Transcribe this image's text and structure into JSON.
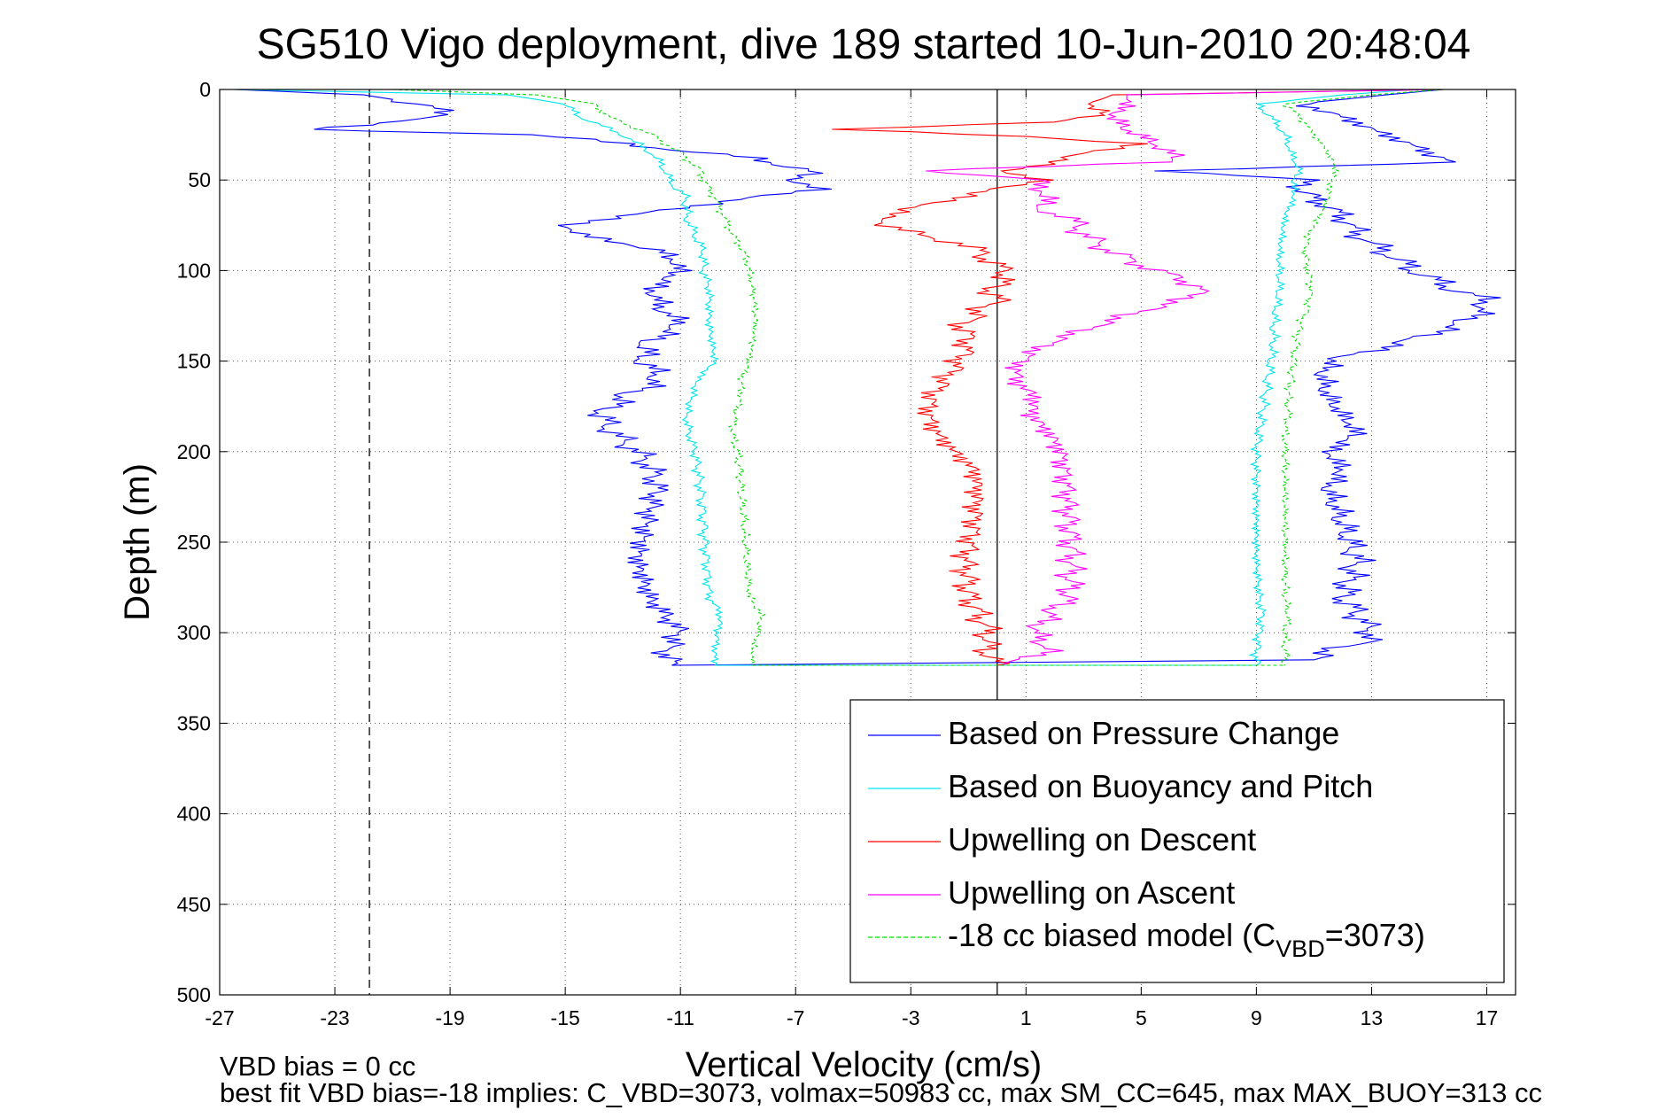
{
  "chart_data": {
    "type": "line",
    "title": "SG510 Vigo deployment, dive 189 started 10-Jun-2010 20:48:04",
    "xlabel": "Vertical Velocity (cm/s)",
    "ylabel": "Depth (m)",
    "xlim": [
      -27,
      18
    ],
    "ylim": [
      0,
      500
    ],
    "y_reversed": true,
    "grid": true,
    "x_ticks": [
      -27,
      -23,
      -19,
      -15,
      -11,
      -7,
      -3,
      1,
      5,
      9,
      13,
      17
    ],
    "x_tick_labels": [
      "-27",
      "-23",
      "-19",
      "-15",
      "-11",
      "-7",
      "-3",
      "1",
      "5",
      "9",
      "13",
      "17"
    ],
    "y_ticks": [
      0,
      50,
      100,
      150,
      200,
      250,
      300,
      350,
      400,
      450,
      500
    ],
    "y_tick_labels": [
      "0",
      "50",
      "100",
      "150",
      "200",
      "250",
      "300",
      "350",
      "400",
      "450",
      "500"
    ],
    "reference_lines": [
      {
        "x": -21.8,
        "style": "dashed",
        "color": "#000000"
      },
      {
        "x": 0,
        "style": "solid",
        "color": "#000000"
      }
    ],
    "legend_position": "bottom-right",
    "series": [
      {
        "name": "Based on Pressure Change",
        "color": "#0000ff",
        "dashed": false,
        "descent": {
          "depth": [
            0,
            3,
            8,
            15,
            22,
            25,
            30,
            38,
            45,
            50,
            55,
            62,
            70,
            75,
            80,
            90,
            100,
            110,
            120,
            130,
            140,
            150,
            160,
            170,
            180,
            190,
            200,
            210,
            220,
            240,
            260,
            280,
            300,
            310,
            318
          ],
          "vel": [
            -26.5,
            -22,
            -20,
            -19,
            -24,
            -16,
            -13,
            -8.5,
            -6.5,
            -7,
            -6.3,
            -9.5,
            -13,
            -15,
            -14.5,
            -11.5,
            -11,
            -12,
            -11.7,
            -11,
            -12.2,
            -12.3,
            -11.7,
            -13,
            -13.8,
            -13.3,
            -12.5,
            -12,
            -11.8,
            -12.2,
            -12.5,
            -12.1,
            -11,
            -11.5,
            -11.3
          ]
        },
        "ascent": {
          "depth": [
            0,
            3,
            8,
            15,
            22,
            28,
            35,
            40,
            45,
            50,
            55,
            62,
            70,
            80,
            90,
            100,
            110,
            115,
            120,
            130,
            140,
            150,
            160,
            170,
            180,
            190,
            200,
            210,
            220,
            240,
            260,
            280,
            300,
            305,
            310,
            315
          ],
          "vel": [
            15.5,
            13.5,
            10.5,
            12,
            13,
            14,
            15,
            15.8,
            6,
            10.8,
            10.5,
            11.2,
            12,
            12.5,
            13.5,
            14.5,
            15.8,
            16.8,
            17,
            16,
            14,
            11.5,
            11.3,
            11.5,
            12,
            12.5,
            11.5,
            12,
            11.5,
            12,
            12.5,
            12,
            13,
            12.8,
            11.5,
            11
          ]
        }
      },
      {
        "name": "Based on Buoyancy and Pitch",
        "color": "#00e5ee",
        "dashed": false,
        "descent": {
          "depth": [
            0,
            3,
            8,
            15,
            25,
            35,
            45,
            50,
            60,
            70,
            80,
            90,
            100,
            110,
            120,
            130,
            140,
            150,
            160,
            170,
            180,
            190,
            200,
            220,
            240,
            260,
            280,
            290,
            300,
            310,
            318
          ],
          "vel": [
            -26.5,
            -17,
            -15,
            -14.5,
            -13,
            -12,
            -11.5,
            -11.4,
            -10.8,
            -10.8,
            -10.5,
            -10.2,
            -10.2,
            -10,
            -10,
            -10,
            -9.9,
            -9.8,
            -10.4,
            -10.6,
            -10.8,
            -10.7,
            -10.5,
            -10.3,
            -10.2,
            -10.1,
            -10,
            -9.6,
            -9.7,
            -9.8,
            -9.8
          ]
        },
        "ascent": {
          "depth": [
            0,
            3,
            8,
            15,
            25,
            35,
            45,
            50,
            60,
            70,
            80,
            90,
            100,
            110,
            120,
            130,
            140,
            150,
            160,
            170,
            180,
            190,
            200,
            220,
            240,
            260,
            280,
            290,
            300,
            310,
            318
          ],
          "vel": [
            14.5,
            12,
            9,
            9.5,
            10,
            10.2,
            10.5,
            10.3,
            10.3,
            10,
            9.9,
            9.8,
            9.8,
            9.8,
            9.7,
            9.6,
            9.6,
            9.5,
            9.4,
            9.3,
            9.2,
            9.1,
            9,
            9,
            9,
            9,
            9.1,
            9.2,
            9.1,
            9,
            9
          ]
        }
      },
      {
        "name": "Upwelling on Descent",
        "color": "#ff0000",
        "dashed": false,
        "descent": {
          "depth": [
            0,
            3,
            8,
            13,
            18,
            22,
            26,
            30,
            35,
            40,
            45,
            50,
            60,
            70,
            75,
            80,
            85,
            90,
            95,
            100,
            105,
            110,
            115,
            120,
            130,
            140,
            150,
            160,
            170,
            180,
            190,
            200,
            210,
            220,
            240,
            260,
            280,
            300,
            310,
            318
          ],
          "vel": [
            15.5,
            4,
            3.2,
            3.8,
            2,
            -5.5,
            1,
            5,
            3,
            2,
            0.3,
            1.5,
            -1.5,
            -4,
            -3.8,
            -2.8,
            -1.3,
            -0.5,
            -0.3,
            0.3,
            0.3,
            -0.3,
            0.1,
            -0.4,
            -1.2,
            -1,
            -1.3,
            -1.8,
            -2.3,
            -2.4,
            -2.1,
            -1.5,
            -0.8,
            -0.7,
            -0.8,
            -1.1,
            -1,
            -0.3,
            -0.4,
            0
          ]
        }
      },
      {
        "name": "Upwelling on Ascent",
        "color": "#ff00ff",
        "dashed": false,
        "ascent": {
          "depth": [
            0,
            3,
            8,
            15,
            22,
            30,
            35,
            40,
            45,
            50,
            55,
            60,
            65,
            70,
            80,
            90,
            100,
            105,
            110,
            115,
            120,
            130,
            140,
            150,
            160,
            170,
            180,
            190,
            200,
            220,
            240,
            260,
            280,
            290,
            300,
            310,
            318
          ],
          "vel": [
            15.5,
            4.5,
            4.5,
            4,
            4.5,
            5.5,
            6,
            6.2,
            -3,
            2,
            1,
            2.2,
            1,
            2.5,
            3,
            4,
            5.5,
            6.5,
            7,
            6.8,
            5.5,
            3.5,
            1.8,
            0.8,
            0.6,
            1.3,
            1.2,
            1.8,
            2.2,
            2.4,
            2.5,
            2.6,
            2.5,
            1.8,
            1.3,
            1.8,
            0.2
          ]
        }
      },
      {
        "name": "-18 cc biased model (C_VBD=3073)",
        "legend_label_parts": [
          "-18 cc biased model (C",
          "VBD",
          "=3073)"
        ],
        "color": "#00dd00",
        "dashed": true,
        "descent": {
          "depth": [
            0,
            3,
            8,
            15,
            25,
            35,
            45,
            50,
            60,
            70,
            80,
            90,
            100,
            110,
            120,
            130,
            140,
            150,
            160,
            170,
            180,
            190,
            200,
            220,
            240,
            260,
            280,
            290,
            300,
            310,
            318
          ],
          "vel": [
            -21,
            -16,
            -14,
            -13.5,
            -12,
            -11,
            -10.3,
            -10.2,
            -9.8,
            -9.5,
            -9.2,
            -8.8,
            -8.6,
            -8.5,
            -8.4,
            -8.4,
            -8.5,
            -8.6,
            -8.9,
            -8.9,
            -9.1,
            -9.2,
            -9,
            -8.9,
            -8.8,
            -8.7,
            -8.6,
            -8.2,
            -8.3,
            -8.5,
            -8.5
          ]
        },
        "ascent": {
          "depth": [
            0,
            3,
            8,
            15,
            25,
            35,
            45,
            50,
            60,
            70,
            80,
            90,
            100,
            110,
            120,
            130,
            140,
            150,
            160,
            170,
            180,
            190,
            200,
            220,
            240,
            260,
            280,
            290,
            300,
            310,
            318
          ],
          "vel": [
            15.5,
            13,
            10,
            10.5,
            11,
            11.5,
            11.8,
            11.6,
            11.5,
            11.2,
            10.8,
            10.7,
            10.8,
            10.9,
            10.8,
            10.5,
            10.4,
            10.3,
            10.2,
            10.1,
            10.1,
            10,
            10,
            10,
            10,
            10,
            10,
            10.1,
            10,
            10,
            10
          ]
        }
      }
    ]
  },
  "footer": {
    "line1": "VBD bias = 0 cc",
    "line2": "best fit VBD bias=-18 implies: C_VBD=3073, volmax=50983 cc, max SM_CC=645, max MAX_BUOY=313 cc"
  }
}
